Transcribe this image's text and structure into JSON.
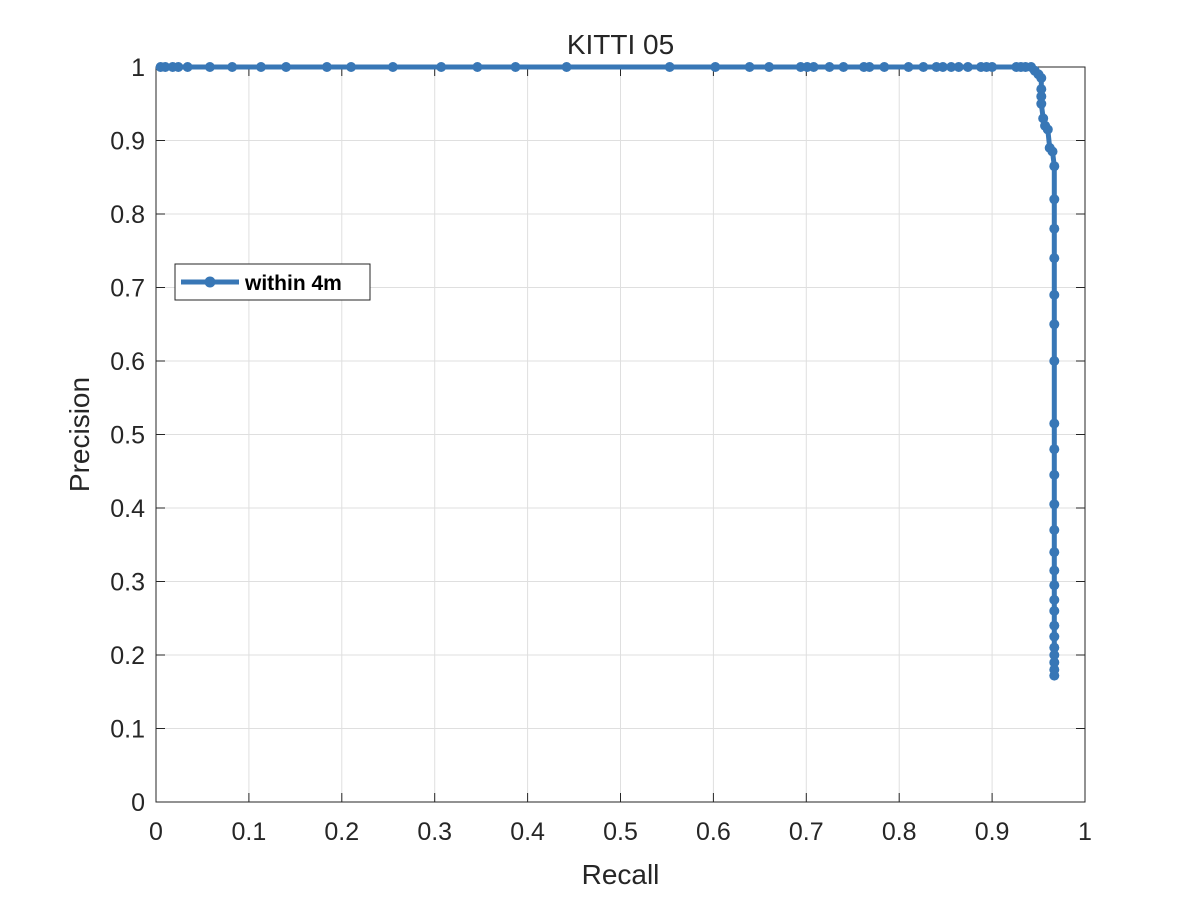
{
  "chart_data": {
    "type": "line",
    "title": "KITTI 05",
    "xlabel": "Recall",
    "ylabel": "Precision",
    "xlim": [
      0,
      1
    ],
    "ylim": [
      0,
      1
    ],
    "xticks": [
      "0",
      "0.1",
      "0.2",
      "0.3",
      "0.4",
      "0.5",
      "0.6",
      "0.7",
      "0.8",
      "0.9",
      "1"
    ],
    "yticks": [
      "0",
      "0.1",
      "0.2",
      "0.3",
      "0.4",
      "0.5",
      "0.6",
      "0.7",
      "0.8",
      "0.9",
      "1"
    ],
    "grid": true,
    "legend_position": "left",
    "series": [
      {
        "name": "within 4m",
        "color": "#3877b6",
        "marker": "circle",
        "points": [
          [
            0.005,
            1
          ],
          [
            0.01,
            1
          ],
          [
            0.018,
            1
          ],
          [
            0.024,
            1
          ],
          [
            0.034,
            1
          ],
          [
            0.058,
            1
          ],
          [
            0.082,
            1
          ],
          [
            0.113,
            1
          ],
          [
            0.14,
            1
          ],
          [
            0.184,
            1
          ],
          [
            0.21,
            1
          ],
          [
            0.255,
            1
          ],
          [
            0.307,
            1
          ],
          [
            0.346,
            1
          ],
          [
            0.387,
            1
          ],
          [
            0.442,
            1
          ],
          [
            0.553,
            1
          ],
          [
            0.602,
            1
          ],
          [
            0.639,
            1
          ],
          [
            0.66,
            1
          ],
          [
            0.694,
            1
          ],
          [
            0.701,
            1
          ],
          [
            0.708,
            1
          ],
          [
            0.725,
            1
          ],
          [
            0.74,
            1
          ],
          [
            0.762,
            1
          ],
          [
            0.768,
            1
          ],
          [
            0.784,
            1
          ],
          [
            0.81,
            1
          ],
          [
            0.826,
            1
          ],
          [
            0.84,
            1
          ],
          [
            0.847,
            1
          ],
          [
            0.856,
            1
          ],
          [
            0.864,
            1
          ],
          [
            0.874,
            1
          ],
          [
            0.888,
            1
          ],
          [
            0.894,
            1
          ],
          [
            0.9,
            1
          ],
          [
            0.926,
            1
          ],
          [
            0.931,
            1
          ],
          [
            0.936,
            1
          ],
          [
            0.942,
            1
          ],
          [
            0.946,
            0.995
          ],
          [
            0.95,
            0.99
          ],
          [
            0.953,
            0.985
          ],
          [
            0.953,
            0.97
          ],
          [
            0.953,
            0.96
          ],
          [
            0.953,
            0.95
          ],
          [
            0.955,
            0.93
          ],
          [
            0.957,
            0.92
          ],
          [
            0.96,
            0.915
          ],
          [
            0.962,
            0.89
          ],
          [
            0.965,
            0.885
          ],
          [
            0.967,
            0.865
          ],
          [
            0.967,
            0.82
          ],
          [
            0.967,
            0.78
          ],
          [
            0.967,
            0.74
          ],
          [
            0.967,
            0.69
          ],
          [
            0.967,
            0.65
          ],
          [
            0.967,
            0.6
          ],
          [
            0.967,
            0.515
          ],
          [
            0.967,
            0.48
          ],
          [
            0.967,
            0.445
          ],
          [
            0.967,
            0.405
          ],
          [
            0.967,
            0.37
          ],
          [
            0.967,
            0.34
          ],
          [
            0.967,
            0.315
          ],
          [
            0.967,
            0.295
          ],
          [
            0.967,
            0.275
          ],
          [
            0.967,
            0.26
          ],
          [
            0.967,
            0.24
          ],
          [
            0.967,
            0.225
          ],
          [
            0.967,
            0.21
          ],
          [
            0.967,
            0.2
          ],
          [
            0.967,
            0.19
          ],
          [
            0.967,
            0.18
          ],
          [
            0.967,
            0.172
          ]
        ]
      }
    ]
  }
}
